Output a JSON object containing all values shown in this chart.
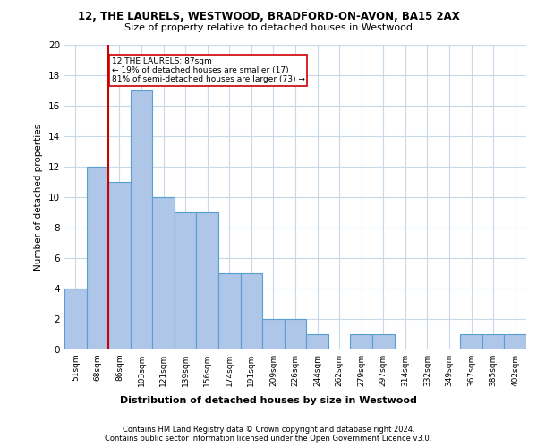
{
  "title1": "12, THE LAURELS, WESTWOOD, BRADFORD-ON-AVON, BA15 2AX",
  "title2": "Size of property relative to detached houses in Westwood",
  "xlabel": "Distribution of detached houses by size in Westwood",
  "ylabel": "Number of detached properties",
  "bar_labels": [
    "51sqm",
    "68sqm",
    "86sqm",
    "103sqm",
    "121sqm",
    "139sqm",
    "156sqm",
    "174sqm",
    "191sqm",
    "209sqm",
    "226sqm",
    "244sqm",
    "262sqm",
    "279sqm",
    "297sqm",
    "314sqm",
    "332sqm",
    "349sqm",
    "367sqm",
    "385sqm",
    "402sqm"
  ],
  "bar_values": [
    4,
    12,
    11,
    17,
    10,
    9,
    9,
    5,
    5,
    2,
    2,
    1,
    0,
    1,
    1,
    0,
    0,
    0,
    1,
    1,
    1
  ],
  "bar_color": "#aec6e8",
  "bar_edge_color": "#5a9fd4",
  "vline_x_index": 2,
  "vline_color": "#cc0000",
  "annotation_text": "12 THE LAURELS: 87sqm\n← 19% of detached houses are smaller (17)\n81% of semi-detached houses are larger (73) →",
  "annotation_box_color": "#cc0000",
  "ylim": [
    0,
    20
  ],
  "yticks": [
    0,
    2,
    4,
    6,
    8,
    10,
    12,
    14,
    16,
    18,
    20
  ],
  "footer1": "Contains HM Land Registry data © Crown copyright and database right 2024.",
  "footer2": "Contains public sector information licensed under the Open Government Licence v3.0.",
  "bg_color": "#ffffff",
  "grid_color": "#c8d8e8"
}
